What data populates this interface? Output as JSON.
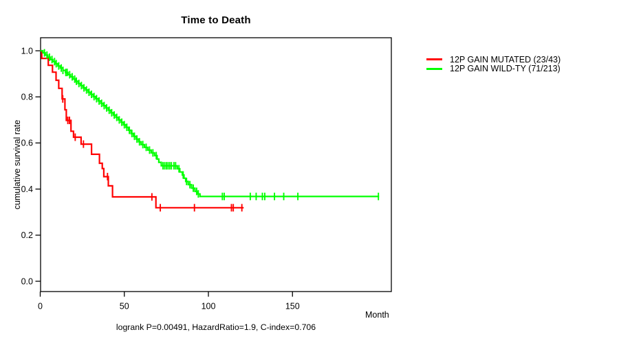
{
  "title": "Time to Death",
  "axes": {
    "x_label": "Month",
    "y_label": "cumulative survival rate",
    "x_tick_labels": [
      "0",
      "50",
      "100",
      "150"
    ],
    "y_tick_labels": [
      "1.0",
      "0.8",
      "0.6",
      "0.4",
      "0.2",
      "0.0"
    ]
  },
  "caption": "logrank P=0.00491, HazardRatio=1.9, C-index=0.706",
  "legend": {
    "items": [
      {
        "label": "12P GAIN MUTATED (23/43)",
        "color": "#FF0000"
      },
      {
        "label": "12P GAIN WILD-TY (71/213)",
        "color": "#00FF00"
      }
    ]
  },
  "colors": {
    "mutated": "#FF0000",
    "wildtype": "#00FF00",
    "axis": "#000000",
    "background": "#FFFFFF"
  },
  "chart_data": {
    "type": "line",
    "subtype": "kaplan_meier_step",
    "title": "Time to Death",
    "xlabel": "Month",
    "ylabel": "cumulative survival rate",
    "xlim": [
      0,
      208
    ],
    "ylim": [
      0,
      1.04
    ],
    "x_ticks": [
      0,
      50,
      100,
      150
    ],
    "y_ticks": [
      1.0,
      0.8,
      0.6,
      0.4,
      0.2,
      0.0
    ],
    "grid": false,
    "legend_position": "right-outside-top",
    "annotation": "logrank P=0.00491, HazardRatio=1.9, C-index=0.706",
    "series": [
      {
        "name": "12P GAIN MUTATED (23/43)",
        "color": "#FF0000",
        "events_over_n": "23/43",
        "end_month": 121,
        "steps": [
          [
            0,
            1.0
          ],
          [
            0.9,
            0.967
          ],
          [
            4.8,
            0.937
          ],
          [
            7.3,
            0.907
          ],
          [
            9.4,
            0.872
          ],
          [
            11,
            0.837
          ],
          [
            13,
            0.791
          ],
          [
            14.7,
            0.744
          ],
          [
            15.5,
            0.698
          ],
          [
            18.3,
            0.651
          ],
          [
            19.8,
            0.625
          ],
          [
            24.3,
            0.595
          ],
          [
            30.5,
            0.551
          ],
          [
            35.2,
            0.512
          ],
          [
            36.9,
            0.489
          ],
          [
            37.8,
            0.454
          ],
          [
            40.5,
            0.414
          ],
          [
            43,
            0.366
          ],
          [
            68.8,
            0.319
          ]
        ],
        "censor_months": [
          13.4,
          16.4,
          17.4,
          20.8,
          25.7,
          40.0,
          66.4,
          71.4,
          91.7,
          113.7,
          114.8,
          119.9
        ]
      },
      {
        "name": "12P GAIN WILD-TY (71/213)",
        "color": "#00FF00",
        "events_over_n": "71/213",
        "end_month": 201.5,
        "steps": [
          [
            0,
            1.0
          ],
          [
            1.5,
            0.991
          ],
          [
            3,
            0.981
          ],
          [
            4.5,
            0.972
          ],
          [
            6,
            0.962
          ],
          [
            7.5,
            0.953
          ],
          [
            9,
            0.944
          ],
          [
            10.5,
            0.934
          ],
          [
            12,
            0.925
          ],
          [
            13.5,
            0.915
          ],
          [
            15,
            0.906
          ],
          [
            16.5,
            0.896
          ],
          [
            18,
            0.887
          ],
          [
            19.5,
            0.877
          ],
          [
            21,
            0.868
          ],
          [
            22.5,
            0.858
          ],
          [
            24,
            0.849
          ],
          [
            25.5,
            0.839
          ],
          [
            27,
            0.83
          ],
          [
            28.5,
            0.82
          ],
          [
            30,
            0.811
          ],
          [
            31.5,
            0.801
          ],
          [
            33,
            0.792
          ],
          [
            34.5,
            0.782
          ],
          [
            36,
            0.772
          ],
          [
            37.5,
            0.762
          ],
          [
            39,
            0.752
          ],
          [
            40.5,
            0.742
          ],
          [
            42,
            0.731
          ],
          [
            43.5,
            0.721
          ],
          [
            45,
            0.711
          ],
          [
            46.5,
            0.7
          ],
          [
            48,
            0.69
          ],
          [
            49.5,
            0.679
          ],
          [
            51,
            0.668
          ],
          [
            52.5,
            0.655
          ],
          [
            54,
            0.641
          ],
          [
            55.5,
            0.629
          ],
          [
            57,
            0.617
          ],
          [
            58.5,
            0.605
          ],
          [
            60,
            0.593
          ],
          [
            62,
            0.581
          ],
          [
            64,
            0.569
          ],
          [
            66,
            0.557
          ],
          [
            68,
            0.545
          ],
          [
            69.5,
            0.53
          ],
          [
            70.5,
            0.516
          ],
          [
            72,
            0.501
          ],
          [
            81.5,
            0.488
          ],
          [
            83,
            0.474
          ],
          [
            84.5,
            0.461
          ],
          [
            85.5,
            0.447
          ],
          [
            86.5,
            0.433
          ],
          [
            88,
            0.419
          ],
          [
            90,
            0.404
          ],
          [
            92,
            0.39
          ],
          [
            93.5,
            0.379
          ],
          [
            95,
            0.368
          ]
        ],
        "censor_months": [
          2.5,
          4,
          5.5,
          7,
          8.5,
          9.5,
          11,
          12.5,
          13.5,
          15.2,
          16,
          17.5,
          19,
          20.5,
          21.5,
          23,
          24.5,
          26,
          27.5,
          29,
          30.5,
          32,
          33.5,
          35,
          36.5,
          38,
          39.5,
          41,
          42.5,
          44,
          45.5,
          47,
          48.5,
          50,
          51.5,
          53,
          54.5,
          56,
          57.5,
          59,
          61,
          63,
          65,
          67,
          69,
          73,
          74,
          75,
          76,
          77,
          78,
          79.5,
          80.5,
          82.5,
          85,
          87,
          89,
          91,
          93,
          94,
          108.3,
          109.4,
          124.9,
          128.4,
          132.1,
          133.5,
          139.3,
          144.8,
          153.2,
          201.1
        ]
      }
    ]
  }
}
